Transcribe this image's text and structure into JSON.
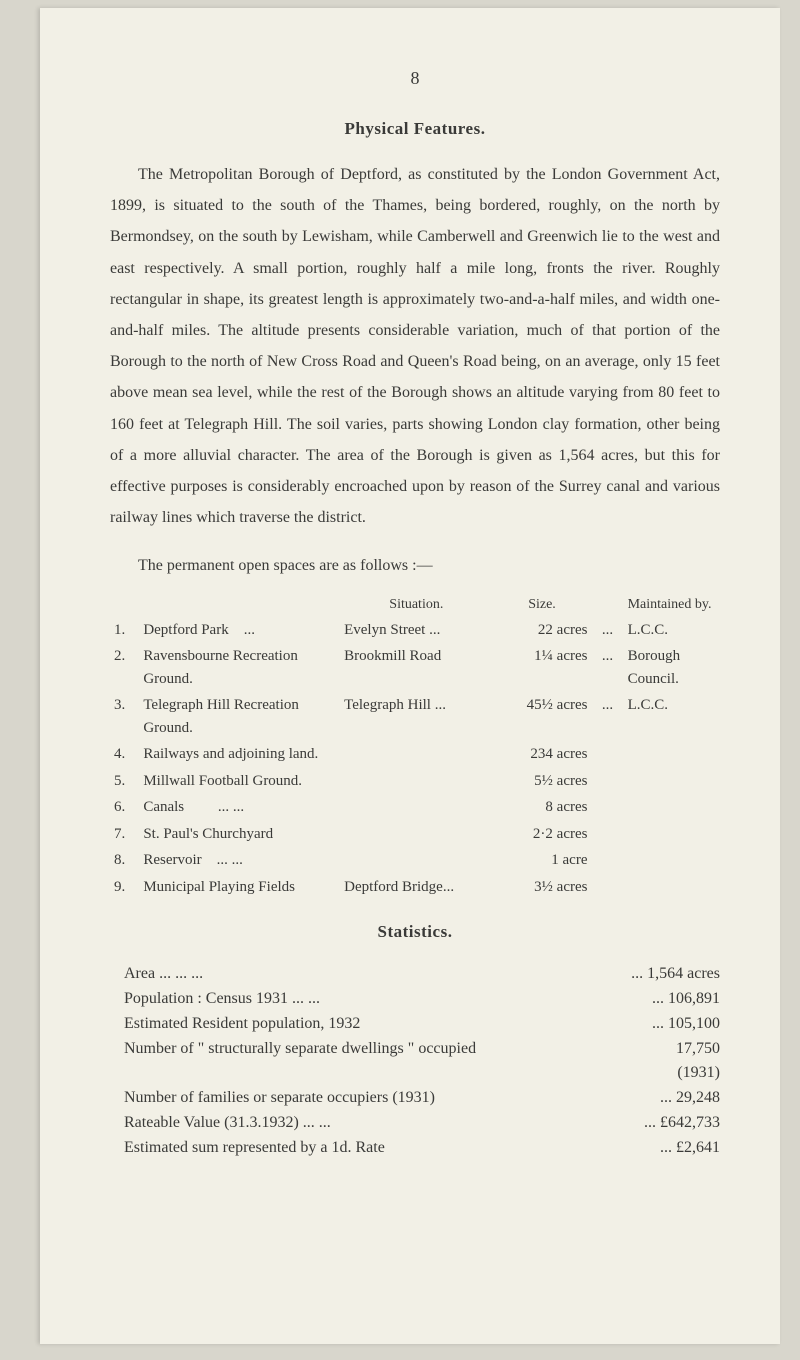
{
  "page_number": "8",
  "section1_title": "Physical Features.",
  "body_paragraph": "The Metropolitan Borough of Deptford, as constituted by the London Government Act, 1899, is situated to the south of the Thames, being bordered, roughly, on the north by Bermondsey, on the south by Lewisham, while Camberwell and Greenwich lie to the west and east respectively. A small portion, roughly half a mile long, fronts the river. Roughly rectangular in shape, its greatest length is approximately two-and-a-half miles, and width one-and-half miles. The altitude presents considerable variation, much of that portion of the Borough to the north of New Cross Road and Queen's Road being, on an average, only 15 feet above mean sea level, while the rest of the Borough shows an altitude varying from 80 feet to 160 feet at Telegraph Hill. The soil varies, parts showing London clay formation, other being of a more alluvial character. The area of the Borough is given as 1,564 acres, but this for effective purposes is considerably encroached upon by reason of the Surrey canal and various railway lines which traverse the district.",
  "intro_line": "The permanent open spaces are as follows :—",
  "table_headers": {
    "situation": "Situation.",
    "size": "Size.",
    "maintained": "Maintained by."
  },
  "spaces": [
    {
      "n": "1.",
      "name": "Deptford Park",
      "dots1": "...",
      "sit": "Evelyn Street ...",
      "size": "22 acres",
      "dots2": "...",
      "maint": "L.C.C."
    },
    {
      "n": "2.",
      "name": "Ravensbourne Recreation Ground.",
      "dots1": "",
      "sit": "Brookmill Road",
      "size": "1¼ acres",
      "dots2": "...",
      "maint": "Borough Council."
    },
    {
      "n": "3.",
      "name": "Telegraph Hill Recreation Ground.",
      "dots1": "",
      "sit": "Telegraph Hill ...",
      "size": "45½ acres",
      "dots2": "...",
      "maint": "L.C.C."
    },
    {
      "n": "4.",
      "name": "Railways and adjoining land.",
      "dots1": "",
      "sit": "",
      "size": "234 acres",
      "dots2": "",
      "maint": ""
    },
    {
      "n": "5.",
      "name": "Millwall Football Ground.",
      "dots1": "",
      "sit": "",
      "size": "5½ acres",
      "dots2": "",
      "maint": ""
    },
    {
      "n": "6.",
      "name": "Canals",
      "dots1": "...    ...",
      "sit": "",
      "size": "8 acres",
      "dots2": "",
      "maint": ""
    },
    {
      "n": "7.",
      "name": "St. Paul's Churchyard",
      "dots1": "",
      "sit": "",
      "size": "2·2 acres",
      "dots2": "",
      "maint": ""
    },
    {
      "n": "8.",
      "name": "Reservoir",
      "dots1": "...    ...",
      "sit": "",
      "size": "1 acre",
      "dots2": "",
      "maint": ""
    },
    {
      "n": "9.",
      "name": "Municipal Playing Fields",
      "dots1": "",
      "sit": "Deptford Bridge...",
      "size": "3½ acres",
      "dots2": "",
      "maint": ""
    }
  ],
  "section2_title": "Statistics.",
  "stats": [
    {
      "label": "Area          ...                ...                ...",
      "val": "... 1,564 acres"
    },
    {
      "label": "Population : Census 1931     ...                ...",
      "val": "...     106,891"
    },
    {
      "label": "                Estimated Resident population, 1932",
      "val": "...     105,100"
    },
    {
      "label": "Number of \" structurally separate dwellings \" occupied",
      "val": "17,750"
    },
    {
      "label": "",
      "val": "(1931)          "
    },
    {
      "label": "Number of families or separate occupiers (1931)",
      "val": "...       29,248"
    },
    {
      "label": "Rateable Value (31.3.1932) ...               ...",
      "val": "... £642,733"
    },
    {
      "label": "Estimated sum represented by a 1d. Rate",
      "val": "...     £2,641"
    }
  ]
}
